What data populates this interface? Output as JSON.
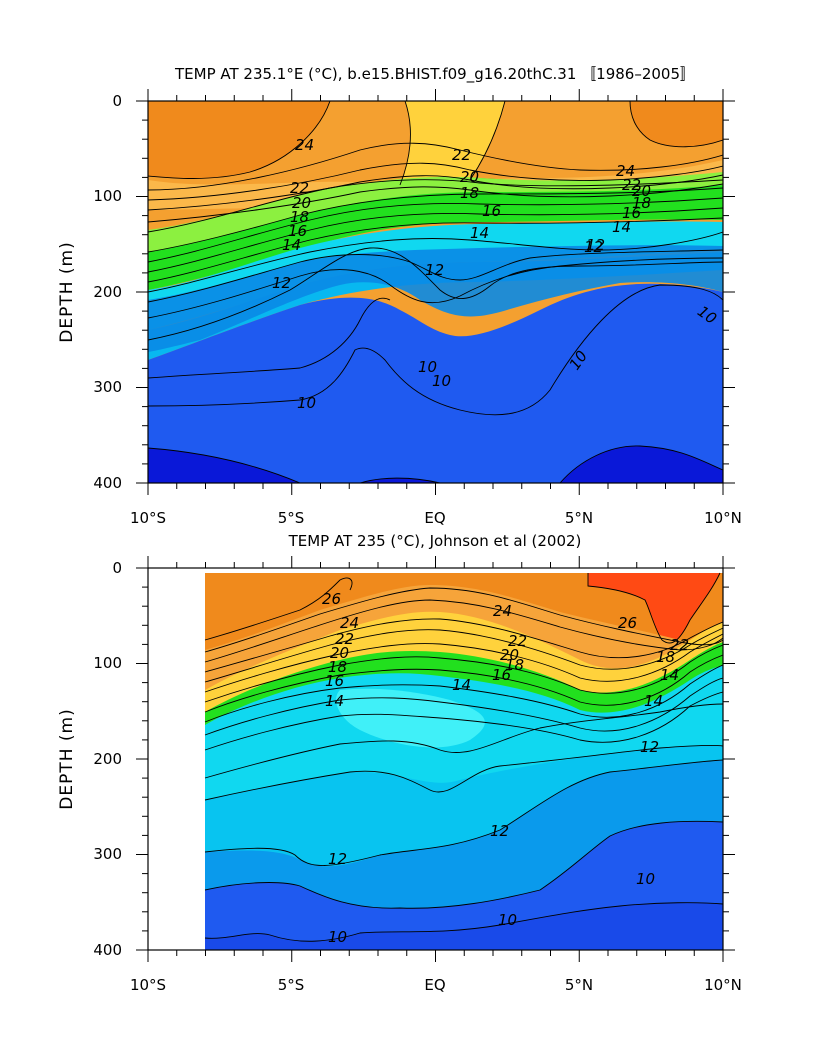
{
  "chart_data": [
    {
      "type": "contour",
      "title": "TEMP AT 235.1°E (°C), b.e15.BHIST.f09_g16.20thC.31 〚1986–2005〛",
      "ylabel": "DEPTH (m)",
      "xlabel": "",
      "x_ticks": [
        "10°S",
        "5°S",
        "EQ",
        "5°N",
        "10°N"
      ],
      "y_ticks": [
        "0",
        "100",
        "200",
        "300",
        "400"
      ],
      "xlim": [
        -10,
        10
      ],
      "ylim": [
        400,
        0
      ],
      "contour_labels": [
        "24",
        "22",
        "20",
        "18",
        "16",
        "14",
        "12",
        "10",
        "22",
        "20",
        "18",
        "16",
        "14",
        "12",
        "12",
        "10",
        "10",
        "24",
        "22",
        "20",
        "18",
        "16",
        "14",
        "12",
        "10",
        "10"
      ],
      "colors": {
        "warm": "#f08a1c",
        "yellow": "#ffd23c",
        "green": "#22e01e",
        "cyan": "#10d8f0",
        "blue": "#1f5af0",
        "deep": "#0a18d8"
      }
    },
    {
      "type": "contour",
      "title": "TEMP AT 235 (°C), Johnson et al (2002)",
      "ylabel": "DEPTH (m)",
      "xlabel": "",
      "x_ticks": [
        "10°S",
        "5°S",
        "EQ",
        "5°N",
        "10°N"
      ],
      "y_ticks": [
        "0",
        "100",
        "200",
        "300",
        "400"
      ],
      "xlim": [
        -10,
        10
      ],
      "ylim": [
        400,
        0
      ],
      "data_x_start": -8,
      "contour_labels": [
        "26",
        "24",
        "22",
        "20",
        "18",
        "16",
        "14",
        "24",
        "22",
        "20",
        "18",
        "16",
        "14",
        "14",
        "12",
        "12",
        "12",
        "10",
        "10",
        "10",
        "26",
        "22",
        "18",
        "14"
      ],
      "colors": {
        "hot": "#ff4a14",
        "warm": "#f08a1c",
        "yellow": "#ffd23c",
        "green": "#22e01e",
        "cyan": "#10d8f0",
        "blue": "#1f5af0"
      }
    }
  ]
}
